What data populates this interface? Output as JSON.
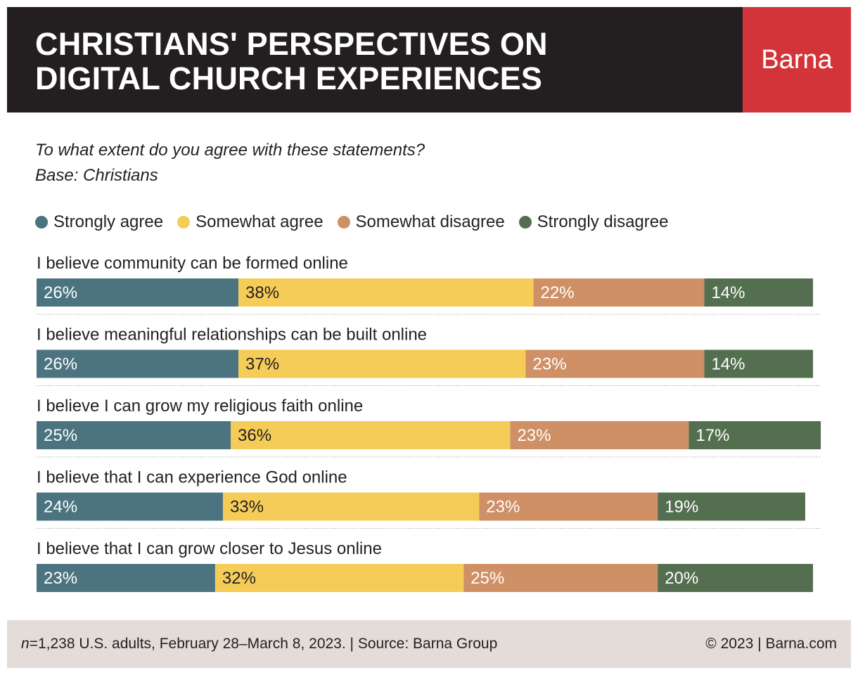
{
  "header": {
    "title_lines": [
      "CHRISTIANS' PERSPECTIVES ON",
      "DIGITAL CHURCH EXPERIENCES"
    ],
    "brand": "Barna"
  },
  "question": {
    "line1": "To what extent do you agree with these statements?",
    "line2": "Base: Christians"
  },
  "colors": {
    "strongly_agree": "#4b7380",
    "somewhat_agree": "#f5cc58",
    "somewhat_disagree": "#cf9065",
    "strongly_disagree": "#546f4f",
    "header_bg": "#231f20",
    "brand_bg": "#d33439",
    "footer_bg": "#e3dcd8"
  },
  "chart_data": {
    "type": "bar",
    "orientation": "horizontal",
    "stacked": true,
    "legend_position": "top-left",
    "unit": "%",
    "categories": [
      "I believe community can be formed online",
      "I believe meaningful relationships can be built online",
      "I believe I can grow my religious faith online",
      "I believe that I can experience God online",
      "I believe that I can grow closer to Jesus online"
    ],
    "series": [
      {
        "name": "Strongly agree",
        "values": [
          26,
          26,
          25,
          24,
          23
        ]
      },
      {
        "name": "Somewhat agree",
        "values": [
          38,
          37,
          36,
          33,
          32
        ]
      },
      {
        "name": "Somewhat disagree",
        "values": [
          22,
          23,
          23,
          23,
          25
        ]
      },
      {
        "name": "Strongly disagree",
        "values": [
          14,
          14,
          17,
          19,
          20
        ]
      }
    ]
  },
  "footer": {
    "n_label": "n",
    "source_text": "=1,238 U.S. adults, February 28–March 8, 2023. | Source: Barna Group",
    "copyright": "© 2023 | Barna.com"
  }
}
